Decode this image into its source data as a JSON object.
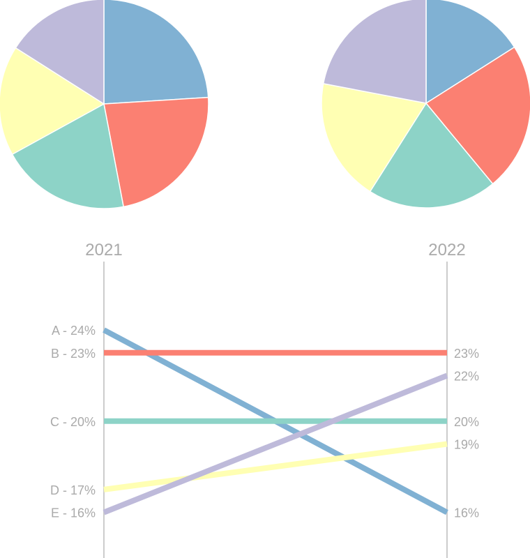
{
  "chart_data": [
    {
      "type": "pie",
      "title": "2021",
      "categories": [
        "A",
        "B",
        "C",
        "D",
        "E"
      ],
      "values": [
        24,
        23,
        20,
        17,
        16
      ]
    },
    {
      "type": "pie",
      "title": "2022",
      "categories": [
        "A",
        "B",
        "C",
        "D",
        "E"
      ],
      "values": [
        16,
        23,
        20,
        19,
        22
      ]
    },
    {
      "type": "line",
      "chart_subtype": "slope",
      "x": [
        "2021",
        "2022"
      ],
      "series": [
        {
          "name": "A",
          "values": [
            24,
            16
          ],
          "left_label": "A - 24%",
          "right_label": "16%",
          "color": "#80b1d3"
        },
        {
          "name": "B",
          "values": [
            23,
            23
          ],
          "left_label": "B - 23%",
          "right_label": "23%",
          "color": "#fb8072"
        },
        {
          "name": "C",
          "values": [
            20,
            20
          ],
          "left_label": "C - 20%",
          "right_label": "20%",
          "color": "#8dd3c7"
        },
        {
          "name": "D",
          "values": [
            17,
            19
          ],
          "left_label": "D - 17%",
          "right_label": "19%",
          "color": "#ffffb3"
        },
        {
          "name": "E",
          "values": [
            16,
            22
          ],
          "left_label": "E - 16%",
          "right_label": "22%",
          "color": "#bebada"
        }
      ],
      "ylim": [
        14,
        27
      ],
      "grid": false
    }
  ]
}
